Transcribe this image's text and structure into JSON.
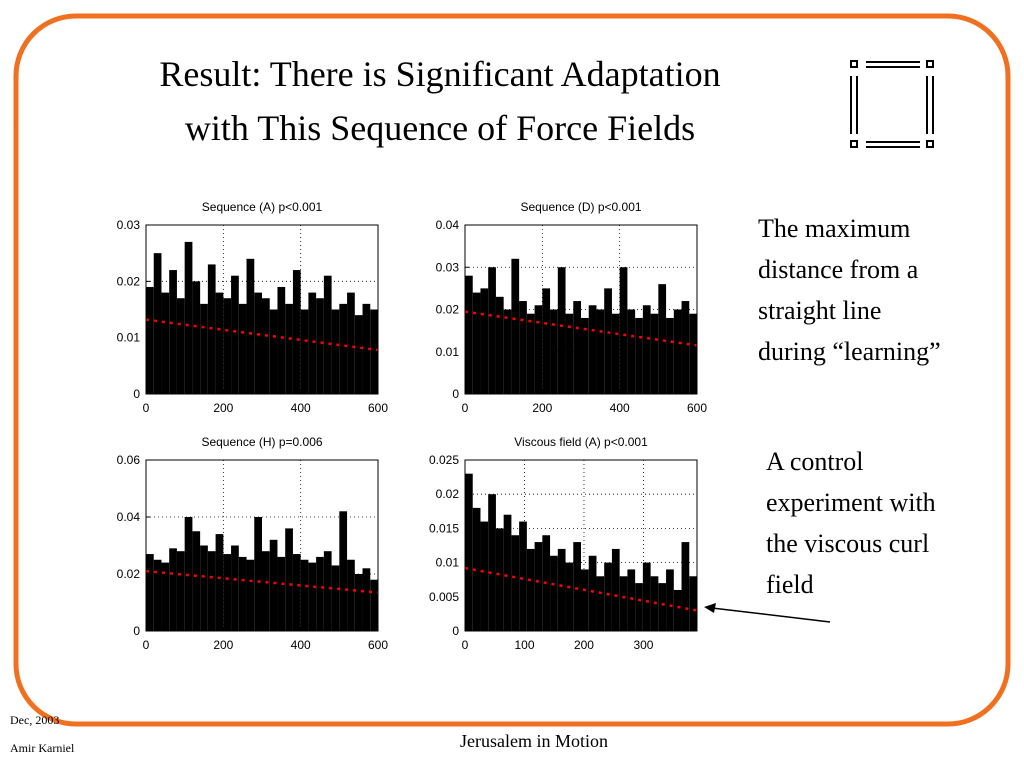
{
  "slide": {
    "title": [
      "Result: There is Significant Adaptation",
      "with This Sequence of Force Fields"
    ],
    "note1": [
      "The maximum",
      "distance from a",
      "straight line",
      "during “learning”"
    ],
    "note2": [
      "A control",
      "experiment with",
      "the viscous curl",
      "field"
    ],
    "footer": {
      "date": "Dec, 2003",
      "author": "Amir Karniel",
      "center": "Jerusalem in Motion"
    }
  },
  "chart_data": [
    {
      "type": "bar",
      "title": "Sequence (A) p<0.001",
      "color": "#000000",
      "grid": true,
      "x": [
        0,
        20,
        40,
        60,
        80,
        100,
        120,
        140,
        160,
        180,
        200,
        220,
        240,
        260,
        280,
        300,
        320,
        340,
        360,
        380,
        400,
        420,
        440,
        460,
        480,
        500,
        520,
        540,
        560,
        580
      ],
      "values": [
        0.019,
        0.025,
        0.018,
        0.022,
        0.017,
        0.027,
        0.02,
        0.016,
        0.023,
        0.018,
        0.017,
        0.021,
        0.016,
        0.024,
        0.018,
        0.017,
        0.015,
        0.019,
        0.016,
        0.022,
        0.015,
        0.018,
        0.017,
        0.021,
        0.015,
        0.016,
        0.018,
        0.014,
        0.016,
        0.015
      ],
      "trend": {
        "color": "#ff0000",
        "x": [
          0,
          600
        ],
        "values": [
          0.0132,
          0.0078
        ]
      },
      "xlim": [
        0,
        600
      ],
      "xticks": [
        0,
        200,
        400,
        600
      ],
      "ylim": [
        0,
        0.03
      ],
      "yticks": [
        0,
        0.01,
        0.02,
        0.03
      ]
    },
    {
      "type": "bar",
      "title": "Sequence (D) p<0.001",
      "color": "#000000",
      "grid": true,
      "x": [
        0,
        20,
        40,
        60,
        80,
        100,
        120,
        140,
        160,
        180,
        200,
        220,
        240,
        260,
        280,
        300,
        320,
        340,
        360,
        380,
        400,
        420,
        440,
        460,
        480,
        500,
        520,
        540,
        560,
        580
      ],
      "values": [
        0.028,
        0.024,
        0.025,
        0.03,
        0.023,
        0.02,
        0.032,
        0.022,
        0.019,
        0.021,
        0.025,
        0.02,
        0.03,
        0.019,
        0.022,
        0.018,
        0.021,
        0.02,
        0.025,
        0.019,
        0.03,
        0.02,
        0.018,
        0.021,
        0.019,
        0.026,
        0.018,
        0.02,
        0.022,
        0.019
      ],
      "trend": {
        "color": "#ff0000",
        "x": [
          0,
          600
        ],
        "values": [
          0.0195,
          0.0115
        ]
      },
      "xlim": [
        0,
        600
      ],
      "xticks": [
        0,
        200,
        400,
        600
      ],
      "ylim": [
        0,
        0.04
      ],
      "yticks": [
        0,
        0.01,
        0.02,
        0.03,
        0.04
      ]
    },
    {
      "type": "bar",
      "title": "Sequence (H) p=0.006",
      "color": "#000000",
      "grid": true,
      "x": [
        0,
        20,
        40,
        60,
        80,
        100,
        120,
        140,
        160,
        180,
        200,
        220,
        240,
        260,
        280,
        300,
        320,
        340,
        360,
        380,
        400,
        420,
        440,
        460,
        480,
        500,
        520,
        540,
        560,
        580
      ],
      "values": [
        0.027,
        0.025,
        0.024,
        0.029,
        0.028,
        0.04,
        0.035,
        0.03,
        0.028,
        0.034,
        0.027,
        0.03,
        0.026,
        0.025,
        0.04,
        0.028,
        0.032,
        0.026,
        0.036,
        0.027,
        0.025,
        0.024,
        0.026,
        0.028,
        0.023,
        0.042,
        0.025,
        0.02,
        0.022,
        0.018
      ],
      "trend": {
        "color": "#ff0000",
        "x": [
          0,
          600
        ],
        "values": [
          0.021,
          0.0135
        ]
      },
      "xlim": [
        0,
        600
      ],
      "xticks": [
        0,
        200,
        400,
        600
      ],
      "ylim": [
        0,
        0.06
      ],
      "yticks": [
        0,
        0.02,
        0.04,
        0.06
      ]
    },
    {
      "type": "bar",
      "title": "Viscous field (A) p<0.001",
      "color": "#000000",
      "grid": true,
      "x": [
        0,
        13,
        26,
        39,
        52,
        65,
        78,
        91,
        104,
        117,
        130,
        143,
        156,
        169,
        182,
        195,
        208,
        221,
        234,
        247,
        260,
        273,
        286,
        299,
        312,
        325,
        338,
        351,
        364,
        377
      ],
      "values": [
        0.023,
        0.018,
        0.016,
        0.02,
        0.015,
        0.017,
        0.014,
        0.016,
        0.012,
        0.013,
        0.014,
        0.011,
        0.012,
        0.01,
        0.013,
        0.009,
        0.011,
        0.008,
        0.01,
        0.012,
        0.008,
        0.009,
        0.007,
        0.01,
        0.008,
        0.007,
        0.009,
        0.006,
        0.013,
        0.008
      ],
      "trend": {
        "color": "#ff0000",
        "x": [
          0,
          390
        ],
        "values": [
          0.0092,
          0.003
        ]
      },
      "xlim": [
        0,
        390
      ],
      "xticks": [
        0,
        100,
        200,
        300
      ],
      "ylim": [
        0,
        0.025
      ],
      "yticks": [
        0,
        0.005,
        0.01,
        0.015,
        0.02,
        0.025
      ]
    }
  ]
}
